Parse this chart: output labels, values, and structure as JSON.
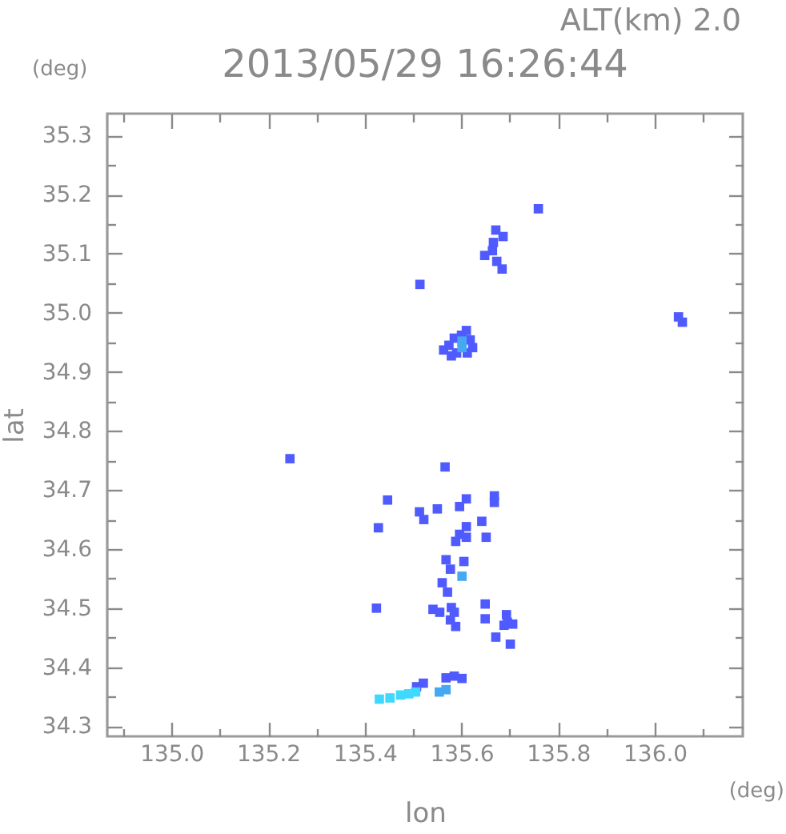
{
  "chart_data": {
    "type": "scatter",
    "title": "2013/05/29 16:26:44",
    "xlabel": "lon",
    "ylabel": "lat",
    "annotations": [
      "ALT(km) 2.0",
      "(deg)",
      "(deg)"
    ],
    "marker": "square",
    "xlim": [
      134.867,
      136.182
    ],
    "ylim": [
      34.283,
      35.337
    ],
    "xticks": [
      {
        "value": 134.9,
        "label": null
      },
      {
        "value": 135,
        "label": "135.0"
      },
      {
        "value": 135.1,
        "label": null
      },
      135.2,
      {
        "value": 135.3,
        "label": null
      },
      135.4,
      {
        "value": 135.5,
        "label": null
      },
      135.6,
      {
        "value": 135.7,
        "label": null
      },
      135.8,
      {
        "value": 135.9,
        "label": null
      },
      {
        "value": 136,
        "label": "136.0"
      },
      {
        "value": 136.1,
        "label": null
      }
    ],
    "yticks": [
      34.3,
      {
        "value": 34.35,
        "label": null
      },
      34.4,
      {
        "value": 34.45,
        "label": null
      },
      34.5,
      {
        "value": 34.55,
        "label": null
      },
      34.6,
      {
        "value": 34.65,
        "label": null
      },
      34.7,
      {
        "value": 34.75,
        "label": null
      },
      34.8,
      {
        "value": 34.85,
        "label": null
      },
      34.9,
      {
        "value": 34.95,
        "label": null
      },
      {
        "value": 35,
        "label": "35.0"
      },
      {
        "value": 35.05,
        "label": null
      },
      35.1,
      {
        "value": 35.15,
        "label": null
      },
      35.2,
      {
        "value": 35.25,
        "label": null
      },
      35.3
    ],
    "series": [
      {
        "color": "#4f5bff",
        "x": [
          135.759,
          135.671,
          135.686,
          135.666,
          135.664,
          135.648,
          135.673,
          135.684,
          135.514,
          136.049,
          136.057,
          135.61,
          135.585,
          135.618,
          135.574,
          135.623,
          135.563,
          135.579,
          135.59,
          135.612,
          135.6,
          135.245,
          135.566,
          135.447,
          135.513,
          135.522,
          135.55,
          135.596,
          135.61,
          135.668,
          135.668,
          135.428,
          135.642,
          135.61,
          135.596,
          135.61,
          135.651,
          135.588,
          135.568,
          135.605,
          135.577,
          135.56,
          135.571,
          135.424,
          135.541,
          135.555,
          135.579,
          135.585,
          135.577,
          135.588,
          135.649,
          135.649,
          135.693,
          135.695,
          135.706,
          135.688,
          135.671,
          135.701,
          135.585,
          135.568,
          135.601,
          135.521,
          135.507
        ],
        "values": [
          35.176,
          35.14,
          35.129,
          35.119,
          35.105,
          35.097,
          35.087,
          35.074,
          35.048,
          34.993,
          34.984,
          34.97,
          34.957,
          34.954,
          34.945,
          34.941,
          34.937,
          34.927,
          34.932,
          34.932,
          34.962,
          34.753,
          34.739,
          34.683,
          34.663,
          34.65,
          34.668,
          34.672,
          34.685,
          34.69,
          34.679,
          34.636,
          34.647,
          34.638,
          34.625,
          34.62,
          34.62,
          34.613,
          34.582,
          34.579,
          34.566,
          34.543,
          34.527,
          34.5,
          34.498,
          34.493,
          34.501,
          34.493,
          34.48,
          34.469,
          34.507,
          34.482,
          34.489,
          34.476,
          34.473,
          34.471,
          34.451,
          34.439,
          34.385,
          34.382,
          34.381,
          34.373,
          34.367
        ]
      },
      {
        "color": "#46a8f0",
        "x": [
          135.601,
          135.601,
          135.601,
          135.554,
          135.568
        ],
        "values": [
          34.941,
          34.952,
          34.554,
          34.358,
          34.362
        ]
      },
      {
        "color": "#3fd8ff",
        "x": [
          135.43,
          135.452,
          135.474,
          135.491,
          135.505
        ],
        "values": [
          34.346,
          34.348,
          34.353,
          34.355,
          34.358
        ]
      }
    ]
  }
}
